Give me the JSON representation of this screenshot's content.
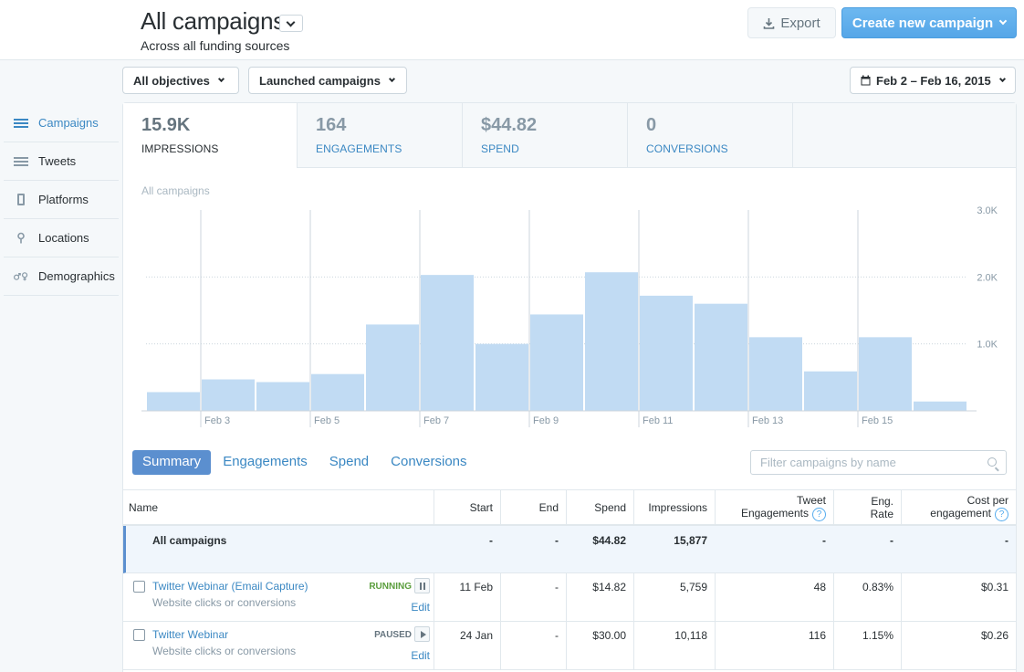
{
  "header": {
    "title": "All campaigns",
    "subtitle": "Across all funding sources",
    "export_label": "Export",
    "create_label": "Create new campaign"
  },
  "filters": {
    "objectives": "All objectives",
    "campaign_state": "Launched campaigns",
    "date_range": "Feb 2 – Feb 16, 2015"
  },
  "sidebar": {
    "items": [
      {
        "label": "Campaigns",
        "icon": "list-icon",
        "active": true
      },
      {
        "label": "Tweets",
        "icon": "list-icon",
        "active": false
      },
      {
        "label": "Platforms",
        "icon": "phone-icon",
        "active": false
      },
      {
        "label": "Locations",
        "icon": "pin-icon",
        "active": false
      },
      {
        "label": "Demographics",
        "icon": "gender-icon",
        "active": false
      }
    ]
  },
  "metrics": [
    {
      "value": "15.9K",
      "label": "IMPRESSIONS",
      "active": true
    },
    {
      "value": "164",
      "label": "ENGAGEMENTS",
      "active": false
    },
    {
      "value": "$44.82",
      "label": "SPEND",
      "active": false
    },
    {
      "value": "0",
      "label": "CONVERSIONS",
      "active": false
    }
  ],
  "chart_caption": "All campaigns",
  "chart_data": {
    "type": "bar",
    "categories": [
      "Feb 2",
      "Feb 3",
      "Feb 4",
      "Feb 5",
      "Feb 6",
      "Feb 7",
      "Feb 8",
      "Feb 9",
      "Feb 10",
      "Feb 11",
      "Feb 12",
      "Feb 13",
      "Feb 14",
      "Feb 15",
      "Feb 16"
    ],
    "x_tick_labels": [
      "Feb 3",
      "Feb 5",
      "Feb 7",
      "Feb 9",
      "Feb 11",
      "Feb 13",
      "Feb 15"
    ],
    "values": [
      280,
      470,
      430,
      550,
      1290,
      2030,
      1000,
      1440,
      2070,
      1720,
      1600,
      1100,
      590,
      1100,
      140
    ],
    "y_ticks": [
      "1.0K",
      "2.0K",
      "3.0K"
    ],
    "ylim": [
      0,
      3000
    ],
    "bar_color": "#c1dbf3",
    "grid": true
  },
  "view_tabs": [
    "Summary",
    "Engagements",
    "Spend",
    "Conversions"
  ],
  "search": {
    "placeholder": "Filter campaigns by name"
  },
  "table": {
    "headers": {
      "name": "Name",
      "start": "Start",
      "end": "End",
      "spend": "Spend",
      "impressions": "Impressions",
      "tweet_engagements_1": "Tweet",
      "tweet_engagements_2": "Engagements",
      "eng_rate_1": "Eng.",
      "eng_rate_2": "Rate",
      "cpe_1": "Cost per",
      "cpe_2": "engagement",
      "help": "?"
    },
    "total": {
      "name": "All campaigns",
      "start": "-",
      "end": "-",
      "spend": "$44.82",
      "impressions": "15,877",
      "engagements": "-",
      "rate": "-",
      "cpe": "-"
    },
    "rows": [
      {
        "name": "Twitter Webinar (Email Capture)",
        "sub": "Website clicks or conversions",
        "status": "RUNNING",
        "status_color": "#5a9d3c",
        "edit": "Edit",
        "start": "11 Feb",
        "end": "-",
        "spend": "$14.82",
        "impressions": "5,759",
        "engagements": "48",
        "rate": "0.83%",
        "cpe": "$0.31"
      },
      {
        "name": "Twitter Webinar",
        "sub": "Website clicks or conversions",
        "status": "PAUSED",
        "status_color": "#66757f",
        "edit": "Edit",
        "start": "24 Jan",
        "end": "-",
        "spend": "$30.00",
        "impressions": "10,118",
        "engagements": "116",
        "rate": "1.15%",
        "cpe": "$0.26"
      }
    ]
  }
}
